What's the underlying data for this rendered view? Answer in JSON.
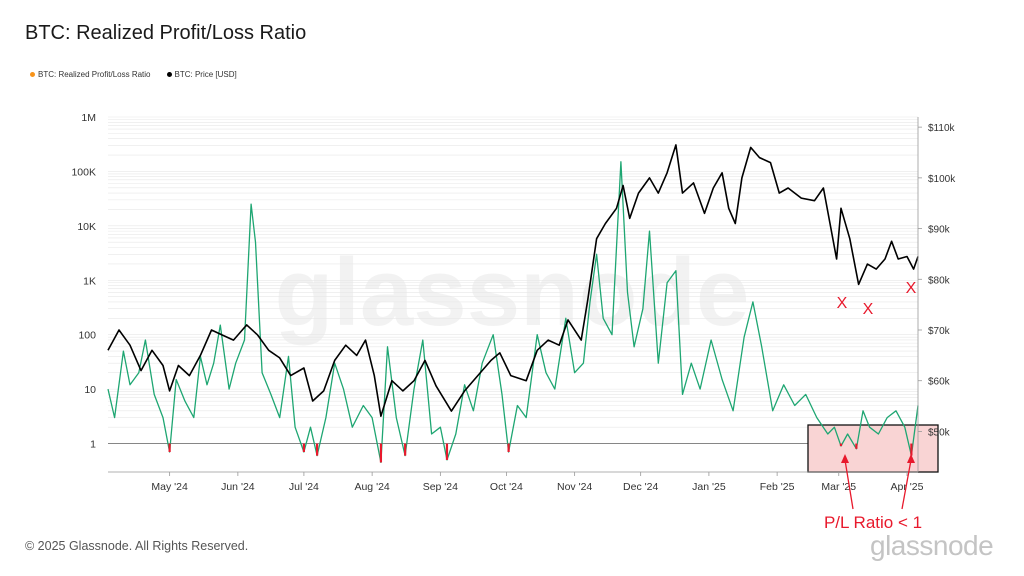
{
  "title": "BTC: Realized Profit/Loss Ratio",
  "legend": [
    {
      "label": "BTC: Realized Profit/Loss Ratio",
      "color": "#f7931a"
    },
    {
      "label": "BTC: Price [USD]",
      "color": "#000000"
    }
  ],
  "footer": "© 2025 Glassnode. All Rights Reserved.",
  "brand": "glassnode",
  "watermark": "glassnode",
  "colors": {
    "ratio_profit": "#1ea672",
    "ratio_loss": "#e8192c",
    "price": "#000000",
    "annotation": "#e8192c",
    "highlight_fill": "#f9d4d4"
  },
  "chart_data": {
    "type": "line",
    "title": "BTC: Realized Profit/Loss Ratio",
    "x_range": [
      "2024-04-03",
      "2025-04-06"
    ],
    "x_ticks": [
      "May '24",
      "Jun '24",
      "Jul '24",
      "Aug '24",
      "Sep '24",
      "Oct '24",
      "Nov '24",
      "Dec '24",
      "Jan '25",
      "Feb '25",
      "Mar '25",
      "Apr '25"
    ],
    "y_left": {
      "scale": "log",
      "range": [
        0.3,
        1000000
      ],
      "ticks": [
        "1",
        "10",
        "100",
        "1K",
        "10K",
        "100K",
        "1M"
      ]
    },
    "y_right": {
      "scale": "linear",
      "range": [
        42000,
        112000
      ],
      "ticks": [
        "$50k",
        "$60k",
        "$70k",
        "$80k",
        "$90k",
        "$100k",
        "$110k"
      ]
    },
    "reference_line": {
      "axis": "left",
      "value": 1
    },
    "series": [
      {
        "name": "BTC: Realized Profit/Loss Ratio",
        "axis": "left",
        "points": [
          [
            "2024-04-03",
            10
          ],
          [
            "2024-04-06",
            3
          ],
          [
            "2024-04-10",
            50
          ],
          [
            "2024-04-13",
            12
          ],
          [
            "2024-04-17",
            20
          ],
          [
            "2024-04-20",
            80
          ],
          [
            "2024-04-24",
            8
          ],
          [
            "2024-04-28",
            3
          ],
          [
            "2024-05-01",
            0.7
          ],
          [
            "2024-05-04",
            15
          ],
          [
            "2024-05-08",
            6
          ],
          [
            "2024-05-12",
            3
          ],
          [
            "2024-05-15",
            40
          ],
          [
            "2024-05-18",
            12
          ],
          [
            "2024-05-21",
            30
          ],
          [
            "2024-05-24",
            150
          ],
          [
            "2024-05-28",
            10
          ],
          [
            "2024-05-31",
            30
          ],
          [
            "2024-06-04",
            80
          ],
          [
            "2024-06-07",
            25000
          ],
          [
            "2024-06-09",
            5000
          ],
          [
            "2024-06-12",
            20
          ],
          [
            "2024-06-16",
            8
          ],
          [
            "2024-06-20",
            3
          ],
          [
            "2024-06-24",
            40
          ],
          [
            "2024-06-27",
            2
          ],
          [
            "2024-07-01",
            0.7
          ],
          [
            "2024-07-04",
            2
          ],
          [
            "2024-07-07",
            0.6
          ],
          [
            "2024-07-11",
            3
          ],
          [
            "2024-07-15",
            30
          ],
          [
            "2024-07-19",
            10
          ],
          [
            "2024-07-23",
            2
          ],
          [
            "2024-07-28",
            5
          ],
          [
            "2024-08-01",
            3
          ],
          [
            "2024-08-05",
            0.45
          ],
          [
            "2024-08-08",
            60
          ],
          [
            "2024-08-12",
            3
          ],
          [
            "2024-08-16",
            0.6
          ],
          [
            "2024-08-20",
            10
          ],
          [
            "2024-08-24",
            80
          ],
          [
            "2024-08-28",
            1.5
          ],
          [
            "2024-09-01",
            2
          ],
          [
            "2024-09-04",
            0.5
          ],
          [
            "2024-09-08",
            1.5
          ],
          [
            "2024-09-12",
            12
          ],
          [
            "2024-09-16",
            4
          ],
          [
            "2024-09-20",
            30
          ],
          [
            "2024-09-25",
            100
          ],
          [
            "2024-09-29",
            8
          ],
          [
            "2024-10-02",
            0.7
          ],
          [
            "2024-10-06",
            5
          ],
          [
            "2024-10-10",
            3
          ],
          [
            "2024-10-15",
            100
          ],
          [
            "2024-10-19",
            20
          ],
          [
            "2024-10-23",
            10
          ],
          [
            "2024-10-28",
            200
          ],
          [
            "2024-11-01",
            20
          ],
          [
            "2024-11-05",
            30
          ],
          [
            "2024-11-08",
            400
          ],
          [
            "2024-11-11",
            3000
          ],
          [
            "2024-11-14",
            200
          ],
          [
            "2024-11-18",
            100
          ],
          [
            "2024-11-22",
            150000
          ],
          [
            "2024-11-25",
            600
          ],
          [
            "2024-11-28",
            60
          ],
          [
            "2024-12-02",
            300
          ],
          [
            "2024-12-05",
            8000
          ],
          [
            "2024-12-09",
            30
          ],
          [
            "2024-12-13",
            900
          ],
          [
            "2024-12-17",
            1500
          ],
          [
            "2024-12-20",
            8
          ],
          [
            "2024-12-24",
            30
          ],
          [
            "2024-12-28",
            10
          ],
          [
            "2025-01-02",
            80
          ],
          [
            "2025-01-07",
            15
          ],
          [
            "2025-01-12",
            4
          ],
          [
            "2025-01-17",
            90
          ],
          [
            "2025-01-21",
            400
          ],
          [
            "2025-01-25",
            60
          ],
          [
            "2025-01-30",
            4
          ],
          [
            "2025-02-04",
            12
          ],
          [
            "2025-02-09",
            5
          ],
          [
            "2025-02-14",
            8
          ],
          [
            "2025-02-19",
            3
          ],
          [
            "2025-02-24",
            1.5
          ],
          [
            "2025-02-27",
            2
          ],
          [
            "2025-03-02",
            0.9
          ],
          [
            "2025-03-05",
            1.5
          ],
          [
            "2025-03-09",
            0.8
          ],
          [
            "2025-03-12",
            4
          ],
          [
            "2025-03-15",
            2
          ],
          [
            "2025-03-19",
            1.5
          ],
          [
            "2025-03-23",
            3
          ],
          [
            "2025-03-27",
            4
          ],
          [
            "2025-03-31",
            2
          ],
          [
            "2025-04-03",
            0.6
          ],
          [
            "2025-04-06",
            5
          ]
        ]
      },
      {
        "name": "BTC: Price [USD]",
        "axis": "right",
        "points": [
          [
            "2024-04-03",
            66000
          ],
          [
            "2024-04-08",
            70000
          ],
          [
            "2024-04-13",
            67000
          ],
          [
            "2024-04-18",
            62000
          ],
          [
            "2024-04-23",
            66000
          ],
          [
            "2024-04-28",
            63000
          ],
          [
            "2024-05-01",
            58000
          ],
          [
            "2024-05-05",
            63000
          ],
          [
            "2024-05-10",
            61000
          ],
          [
            "2024-05-15",
            65000
          ],
          [
            "2024-05-20",
            70000
          ],
          [
            "2024-05-25",
            69000
          ],
          [
            "2024-05-30",
            68000
          ],
          [
            "2024-06-05",
            71000
          ],
          [
            "2024-06-10",
            69000
          ],
          [
            "2024-06-15",
            66000
          ],
          [
            "2024-06-20",
            64500
          ],
          [
            "2024-06-25",
            61000
          ],
          [
            "2024-07-01",
            62500
          ],
          [
            "2024-07-05",
            56000
          ],
          [
            "2024-07-10",
            58000
          ],
          [
            "2024-07-15",
            64000
          ],
          [
            "2024-07-20",
            67000
          ],
          [
            "2024-07-25",
            65000
          ],
          [
            "2024-07-29",
            68000
          ],
          [
            "2024-08-02",
            61000
          ],
          [
            "2024-08-05",
            53000
          ],
          [
            "2024-08-10",
            60000
          ],
          [
            "2024-08-15",
            58000
          ],
          [
            "2024-08-20",
            60000
          ],
          [
            "2024-08-25",
            64000
          ],
          [
            "2024-08-30",
            59000
          ],
          [
            "2024-09-06",
            54000
          ],
          [
            "2024-09-12",
            58000
          ],
          [
            "2024-09-18",
            61000
          ],
          [
            "2024-09-24",
            64000
          ],
          [
            "2024-09-28",
            65500
          ],
          [
            "2024-10-03",
            61000
          ],
          [
            "2024-10-10",
            60000
          ],
          [
            "2024-10-15",
            66000
          ],
          [
            "2024-10-20",
            68000
          ],
          [
            "2024-10-25",
            67000
          ],
          [
            "2024-10-29",
            72000
          ],
          [
            "2024-11-04",
            68000
          ],
          [
            "2024-11-07",
            76000
          ],
          [
            "2024-11-11",
            88000
          ],
          [
            "2024-11-15",
            91000
          ],
          [
            "2024-11-20",
            94000
          ],
          [
            "2024-11-23",
            98500
          ],
          [
            "2024-11-26",
            92000
          ],
          [
            "2024-11-30",
            97000
          ],
          [
            "2024-12-05",
            100000
          ],
          [
            "2024-12-09",
            97000
          ],
          [
            "2024-12-13",
            101000
          ],
          [
            "2024-12-17",
            106500
          ],
          [
            "2024-12-20",
            97000
          ],
          [
            "2024-12-25",
            99000
          ],
          [
            "2024-12-30",
            93000
          ],
          [
            "2025-01-03",
            98000
          ],
          [
            "2025-01-07",
            101000
          ],
          [
            "2025-01-10",
            94000
          ],
          [
            "2025-01-13",
            91000
          ],
          [
            "2025-01-16",
            100000
          ],
          [
            "2025-01-20",
            106000
          ],
          [
            "2025-01-24",
            104000
          ],
          [
            "2025-01-29",
            103000
          ],
          [
            "2025-02-02",
            97000
          ],
          [
            "2025-02-06",
            98000
          ],
          [
            "2025-02-12",
            96000
          ],
          [
            "2025-02-18",
            95500
          ],
          [
            "2025-02-22",
            98000
          ],
          [
            "2025-02-25",
            91000
          ],
          [
            "2025-02-28",
            84000
          ],
          [
            "2025-03-02",
            94000
          ],
          [
            "2025-03-06",
            88000
          ],
          [
            "2025-03-10",
            79000
          ],
          [
            "2025-03-14",
            83000
          ],
          [
            "2025-03-18",
            82000
          ],
          [
            "2025-03-22",
            84000
          ],
          [
            "2025-03-25",
            87500
          ],
          [
            "2025-03-28",
            84000
          ],
          [
            "2025-04-01",
            84500
          ],
          [
            "2025-04-04",
            82000
          ],
          [
            "2025-04-06",
            84500
          ]
        ]
      }
    ]
  },
  "annotations": {
    "marks": [
      "X",
      "X",
      "X"
    ],
    "label": "P/L Ratio < 1"
  }
}
